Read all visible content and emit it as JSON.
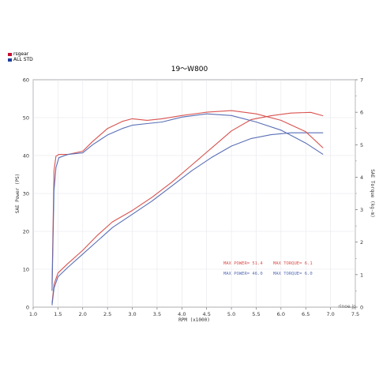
{
  "legend": [
    {
      "label": "rsgear",
      "color": "#c8102e"
    },
    {
      "label": "ALL STD",
      "color": "#1f3f9e"
    }
  ],
  "watermark": "rinoe.jp",
  "chart_data": {
    "type": "line",
    "title": "19～W800",
    "xlabel": "RPM (x1000)",
    "ylabel_left": "SAE Power (PS)",
    "ylabel_right": "SAE Torque (kg-m)",
    "xlim": [
      1.0,
      7.5
    ],
    "ylim_left": [
      0,
      60
    ],
    "ylim_right": [
      0,
      7
    ],
    "x_ticks": [
      "1.0",
      "1.5",
      "2.0",
      "2.5",
      "3.0",
      "3.5",
      "4.0",
      "4.5",
      "5.0",
      "5.5",
      "6.0",
      "6.5",
      "7.0",
      "7.5"
    ],
    "y_ticks_left": [
      "0",
      "10",
      "20",
      "30",
      "40",
      "50",
      "60"
    ],
    "y_ticks_right": [
      "0",
      "1",
      "2",
      "3",
      "4",
      "5",
      "6",
      "7"
    ],
    "grid": true,
    "series": [
      {
        "name": "rsgear",
        "kind": "power",
        "axis": "left",
        "color": "#d9534f",
        "x": [
          1.38,
          1.42,
          1.5,
          1.7,
          2.0,
          2.3,
          2.6,
          3.0,
          3.4,
          3.8,
          4.2,
          4.6,
          5.0,
          5.4,
          5.8,
          6.2,
          6.6,
          6.85
        ],
        "y": [
          1,
          6,
          9,
          11.5,
          15,
          19,
          22.5,
          25.5,
          29,
          33,
          37.5,
          42,
          46.5,
          49.5,
          50.5,
          51.2,
          51.4,
          50.5
        ]
      },
      {
        "name": "ALL STD",
        "kind": "power",
        "axis": "left",
        "color": "#5a6fb5",
        "x": [
          1.38,
          1.42,
          1.5,
          1.7,
          2.0,
          2.3,
          2.6,
          3.0,
          3.4,
          3.8,
          4.2,
          4.6,
          5.0,
          5.4,
          5.8,
          6.2,
          6.6,
          6.85
        ],
        "y": [
          0.5,
          5,
          8,
          10.5,
          14,
          17.5,
          21,
          24.5,
          28,
          32,
          36,
          39.5,
          42.5,
          44.5,
          45.5,
          46,
          46,
          46
        ]
      },
      {
        "name": "rsgear",
        "kind": "torque",
        "axis": "right",
        "color": "#d9534f",
        "x": [
          1.38,
          1.42,
          1.46,
          1.52,
          1.7,
          2.0,
          2.2,
          2.5,
          2.8,
          3.0,
          3.3,
          3.6,
          4.0,
          4.5,
          5.0,
          5.5,
          6.0,
          6.5,
          6.85
        ],
        "y": [
          0.7,
          4.2,
          4.65,
          4.7,
          4.7,
          4.8,
          5.1,
          5.5,
          5.72,
          5.8,
          5.75,
          5.8,
          5.9,
          6.0,
          6.05,
          5.95,
          5.75,
          5.4,
          4.9
        ]
      },
      {
        "name": "ALL STD",
        "kind": "torque",
        "axis": "right",
        "color": "#5a6fb5",
        "x": [
          1.38,
          1.42,
          1.46,
          1.52,
          1.7,
          2.0,
          2.2,
          2.5,
          2.8,
          3.0,
          3.3,
          3.6,
          4.0,
          4.5,
          5.0,
          5.5,
          6.0,
          6.5,
          6.85
        ],
        "y": [
          0.5,
          3.6,
          4.3,
          4.6,
          4.7,
          4.75,
          5.0,
          5.3,
          5.5,
          5.6,
          5.65,
          5.7,
          5.85,
          5.95,
          5.9,
          5.7,
          5.45,
          5.05,
          4.7
        ]
      }
    ],
    "annotations": [
      {
        "text": "MAX POWER= 51.4",
        "color": "#d9534f"
      },
      {
        "text": "MAX TORQUE= 6.1",
        "color": "#d9534f"
      },
      {
        "text": "MAX POWER= 46.0",
        "color": "#5a6fb5"
      },
      {
        "text": "MAX TORQUE= 6.0",
        "color": "#5a6fb5"
      }
    ]
  }
}
